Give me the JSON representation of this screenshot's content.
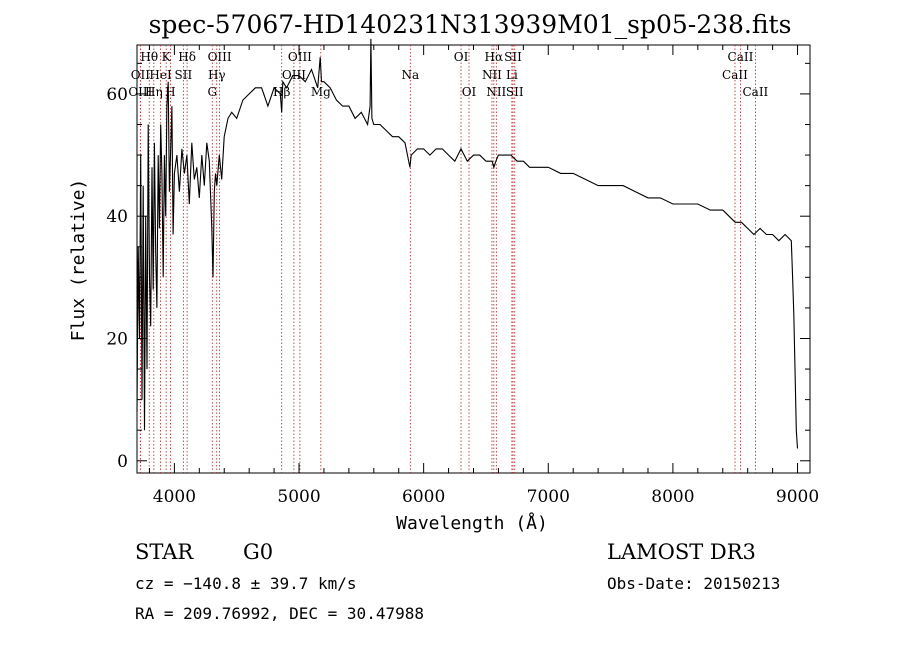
{
  "chart_data": {
    "type": "line",
    "title": "spec-57067-HD140231N313939M01_sp05-238.fits",
    "xlabel": "Wavelength (Å)",
    "ylabel": "Flux (relative)",
    "xlim": [
      3700,
      9100
    ],
    "ylim": [
      -2,
      68
    ],
    "xticks": [
      4000,
      5000,
      6000,
      7000,
      8000,
      9000
    ],
    "xtick_labels": [
      "4000",
      "5000",
      "6000",
      "7000",
      "8000",
      "9000"
    ],
    "yticks": [
      0,
      20,
      40,
      60
    ],
    "ytick_labels": [
      "0",
      "20",
      "40",
      "60"
    ],
    "grid": false,
    "series_color": "#000000",
    "line_marker_color": "#b22222",
    "series": [
      {
        "x": [
          3700,
          3710,
          3720,
          3730,
          3740,
          3750,
          3760,
          3770,
          3780,
          3790,
          3800,
          3810,
          3820,
          3830,
          3840,
          3850,
          3860,
          3870,
          3880,
          3890,
          3900,
          3910,
          3920,
          3930,
          3940,
          3950,
          3960,
          3970,
          3980,
          3990,
          4000,
          4020,
          4040,
          4060,
          4080,
          4100,
          4120,
          4140,
          4160,
          4180,
          4200,
          4220,
          4240,
          4260,
          4280,
          4300,
          4310,
          4320,
          4330,
          4340,
          4360,
          4380,
          4400,
          4430,
          4460,
          4500,
          4550,
          4600,
          4650,
          4700,
          4750,
          4800,
          4850,
          4861,
          4870,
          4900,
          4950,
          5000,
          5050,
          5100,
          5150,
          5170,
          5180,
          5200,
          5250,
          5300,
          5350,
          5400,
          5450,
          5500,
          5550,
          5570,
          5577,
          5585,
          5600,
          5650,
          5700,
          5750,
          5800,
          5850,
          5890,
          5900,
          5950,
          6000,
          6050,
          6100,
          6150,
          6200,
          6250,
          6300,
          6350,
          6400,
          6450,
          6500,
          6550,
          6563,
          6580,
          6600,
          6650,
          6700,
          6750,
          6800,
          6850,
          6900,
          6950,
          7000,
          7100,
          7200,
          7300,
          7400,
          7500,
          7600,
          7700,
          7800,
          7900,
          8000,
          8100,
          8200,
          8300,
          8400,
          8450,
          8500,
          8550,
          8600,
          8650,
          8700,
          8750,
          8800,
          8850,
          8900,
          8950,
          8960,
          8970,
          8980,
          8990,
          9000
        ],
        "y": [
          8,
          35,
          20,
          50,
          10,
          45,
          5,
          40,
          15,
          55,
          30,
          22,
          48,
          28,
          52,
          34,
          25,
          50,
          38,
          55,
          47,
          30,
          50,
          40,
          58,
          62,
          44,
          51,
          58,
          37,
          47,
          50,
          44,
          51,
          47,
          50,
          42,
          52,
          46,
          48,
          43,
          50,
          45,
          52,
          49,
          38,
          30,
          44,
          47,
          45,
          50,
          46,
          53,
          56,
          57,
          56,
          59,
          60,
          61,
          61,
          58,
          61,
          60,
          57,
          62,
          61,
          63,
          63,
          62,
          64,
          61,
          66,
          62,
          62,
          61,
          59,
          58,
          58,
          56,
          57,
          55,
          58,
          69,
          56,
          55,
          55,
          54,
          53,
          53,
          52,
          48,
          50,
          51,
          51,
          50,
          51,
          51,
          50,
          49,
          51,
          49,
          50,
          50,
          49,
          49,
          48,
          49,
          50,
          50,
          50,
          49,
          49,
          48,
          48,
          48,
          48,
          47,
          47,
          46,
          45,
          45,
          45,
          44,
          43,
          43,
          42,
          42,
          42,
          41,
          41,
          40,
          39,
          39,
          38,
          37,
          38,
          37,
          37,
          36,
          37,
          36,
          30,
          24,
          15,
          5,
          2
        ]
      }
    ],
    "spectral_lines": [
      {
        "name": "Hθ",
        "wavelength": 3798,
        "row": 1
      },
      {
        "name": "K",
        "wavelength": 3934,
        "row": 1
      },
      {
        "name": "Hδ",
        "wavelength": 4102,
        "row": 1
      },
      {
        "name": "OIII",
        "wavelength": 4363,
        "row": 1
      },
      {
        "name": "OIII",
        "wavelength": 5007,
        "row": 1
      },
      {
        "name": "OI",
        "wavelength": 6300,
        "row": 1
      },
      {
        "name": "Hα",
        "wavelength": 6563,
        "row": 1
      },
      {
        "name": "SII",
        "wavelength": 6717,
        "row": 1
      },
      {
        "name": "CaII",
        "wavelength": 8542,
        "row": 1
      },
      {
        "name": "OII",
        "wavelength": 3727,
        "row": 2
      },
      {
        "name": "HeI",
        "wavelength": 3889,
        "row": 2
      },
      {
        "name": "SII",
        "wavelength": 4072,
        "row": 2
      },
      {
        "name": "Hγ",
        "wavelength": 4340,
        "row": 2
      },
      {
        "name": "OIII",
        "wavelength": 4959,
        "row": 2
      },
      {
        "name": "Na",
        "wavelength": 5893,
        "row": 2
      },
      {
        "name": "NII",
        "wavelength": 6548,
        "row": 2
      },
      {
        "name": "Li",
        "wavelength": 6708,
        "row": 2
      },
      {
        "name": "CaII",
        "wavelength": 8498,
        "row": 2
      },
      {
        "name": "OIII",
        "wavelength": 3727,
        "row": 3
      },
      {
        "name": "Hη",
        "wavelength": 3835,
        "row": 3
      },
      {
        "name": "H",
        "wavelength": 3968,
        "row": 3
      },
      {
        "name": "G",
        "wavelength": 4304,
        "row": 3
      },
      {
        "name": "Hβ",
        "wavelength": 4861,
        "row": 3
      },
      {
        "name": "Mg",
        "wavelength": 5175,
        "row": 3
      },
      {
        "name": "OI",
        "wavelength": 6364,
        "row": 3
      },
      {
        "name": "NII",
        "wavelength": 6583,
        "row": 3
      },
      {
        "name": "SII",
        "wavelength": 6731,
        "row": 3
      },
      {
        "name": "CaII",
        "wavelength": 8662,
        "row": 3
      }
    ]
  },
  "info": {
    "object_class": "STAR",
    "subclass": "G0",
    "survey": "LAMOST DR3",
    "cz": "cz = −140.8 ± 39.7 km/s",
    "obs_date": "Obs-Date: 20150213",
    "coords": "RA = 209.76992, DEC =  30.47988"
  }
}
